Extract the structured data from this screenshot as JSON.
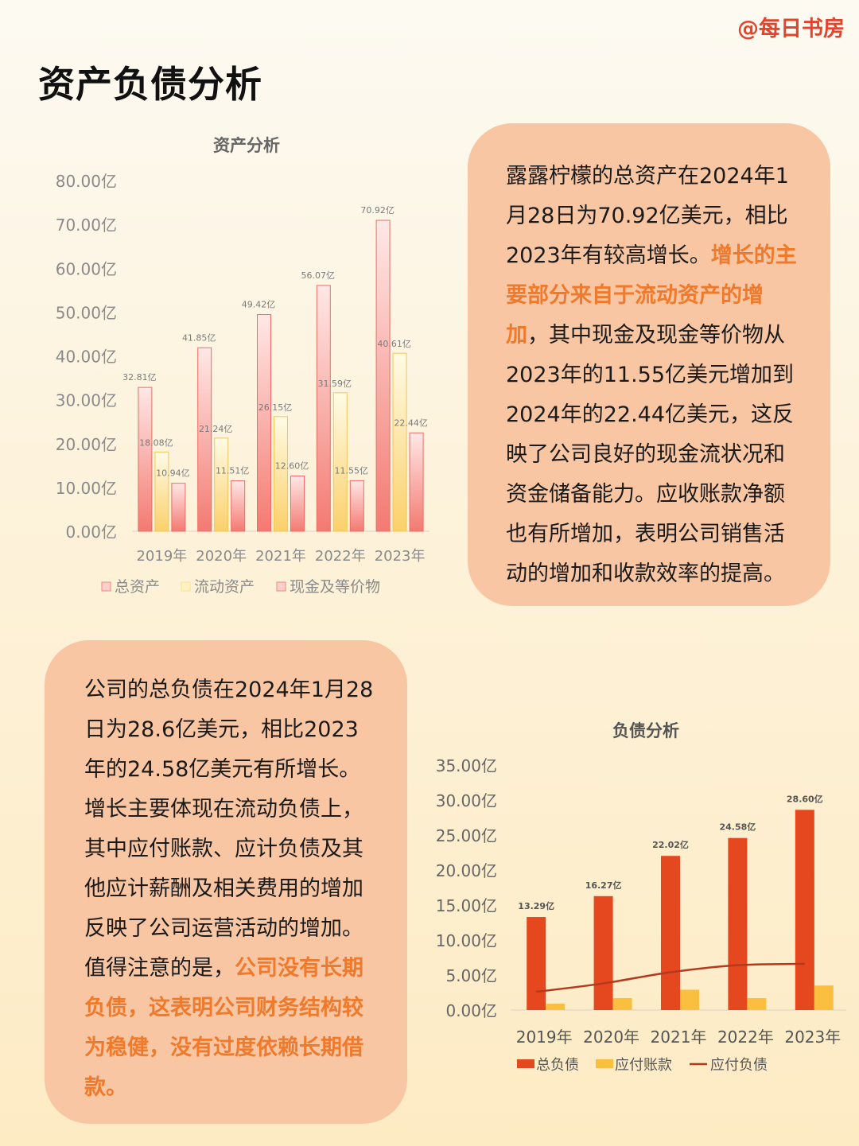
{
  "header": {
    "handle": "@每日书房",
    "title": "资产负债分析"
  },
  "asset_card": {
    "parts": [
      {
        "text": "露露柠檬的总资产在2024年1月28日为70.92亿美元，相比2023年有较高增长。",
        "highlight": false
      },
      {
        "text": "增长的主要部分来自于流动资产的增加",
        "highlight": true
      },
      {
        "text": "，其中现金及现金等价物从2023年的11.55亿美元增加到2024年的22.44亿美元，这反映了公司良好的现金流状况和资金储备能力。应收账款净额也有所增加，表明公司销售活动的增加和收款效率的提高。",
        "highlight": false
      }
    ]
  },
  "liability_card": {
    "parts": [
      {
        "text": "公司的总负债在2024年1月28日为28.6亿美元，相比2023年的24.58亿美元有所增长。增长主要体现在流动负债上，其中应付账款、应计负债及其他应计薪酬及相关费用的增加反映了公司运营活动的增加。值得注意的是，",
        "highlight": false
      },
      {
        "text": "公司没有长期负债，这表明公司财务结构较为稳健，没有过度依赖长期借款。",
        "highlight": true
      }
    ]
  },
  "chart_data": [
    {
      "type": "bar",
      "title": "资产分析",
      "categories": [
        "2019年",
        "2020年",
        "2021年",
        "2022年",
        "2023年"
      ],
      "yticks": [
        "0.00亿",
        "10.00亿",
        "20.00亿",
        "30.00亿",
        "40.00亿",
        "50.00亿",
        "60.00亿",
        "70.00亿",
        "80.00亿"
      ],
      "ylim": [
        0,
        80
      ],
      "legend_position": "bottom",
      "series": [
        {
          "name": "总资产",
          "values": [
            32.81,
            41.85,
            49.42,
            56.07,
            70.92
          ],
          "labels": [
            "32.81亿",
            "41.85亿",
            "49.42亿",
            "56.07亿",
            "70.92亿"
          ],
          "color": "#f48a82"
        },
        {
          "name": "流动资产",
          "values": [
            18.08,
            21.24,
            26.15,
            31.59,
            40.61
          ],
          "labels": [
            "18.08亿",
            "21.24亿",
            "26.15亿",
            "31.59亿",
            "40.61亿"
          ],
          "color": "#fbd77a"
        },
        {
          "name": "现金及等价物",
          "values": [
            10.94,
            11.51,
            12.6,
            11.55,
            22.44
          ],
          "labels": [
            "10.94亿",
            "11.51亿",
            "12.60亿",
            "11.55亿",
            "22.44亿"
          ],
          "color": "#f48a82"
        }
      ]
    },
    {
      "type": "bar",
      "title": "负债分析",
      "categories": [
        "2019年",
        "2020年",
        "2021年",
        "2022年",
        "2023年"
      ],
      "yticks": [
        "0.00亿",
        "5.00亿",
        "10.00亿",
        "15.00亿",
        "20.00亿",
        "25.00亿",
        "30.00亿",
        "35.00亿"
      ],
      "ylim": [
        0,
        35
      ],
      "legend_position": "bottom",
      "series": [
        {
          "name": "总负债",
          "kind": "bar",
          "values": [
            13.29,
            16.27,
            22.02,
            24.58,
            28.6
          ],
          "labels": [
            "13.29亿",
            "16.27亿",
            "22.02亿",
            "24.58亿",
            "28.60亿"
          ],
          "color": "#e5471f"
        },
        {
          "name": "应付账款",
          "kind": "bar",
          "values": [
            0.9,
            1.7,
            2.9,
            1.7,
            3.5
          ],
          "color": "#fbbf40"
        },
        {
          "name": "应付负债",
          "kind": "line",
          "values": [
            2.6,
            3.8,
            5.4,
            6.4,
            6.6
          ],
          "color": "#b5391e"
        }
      ]
    }
  ]
}
